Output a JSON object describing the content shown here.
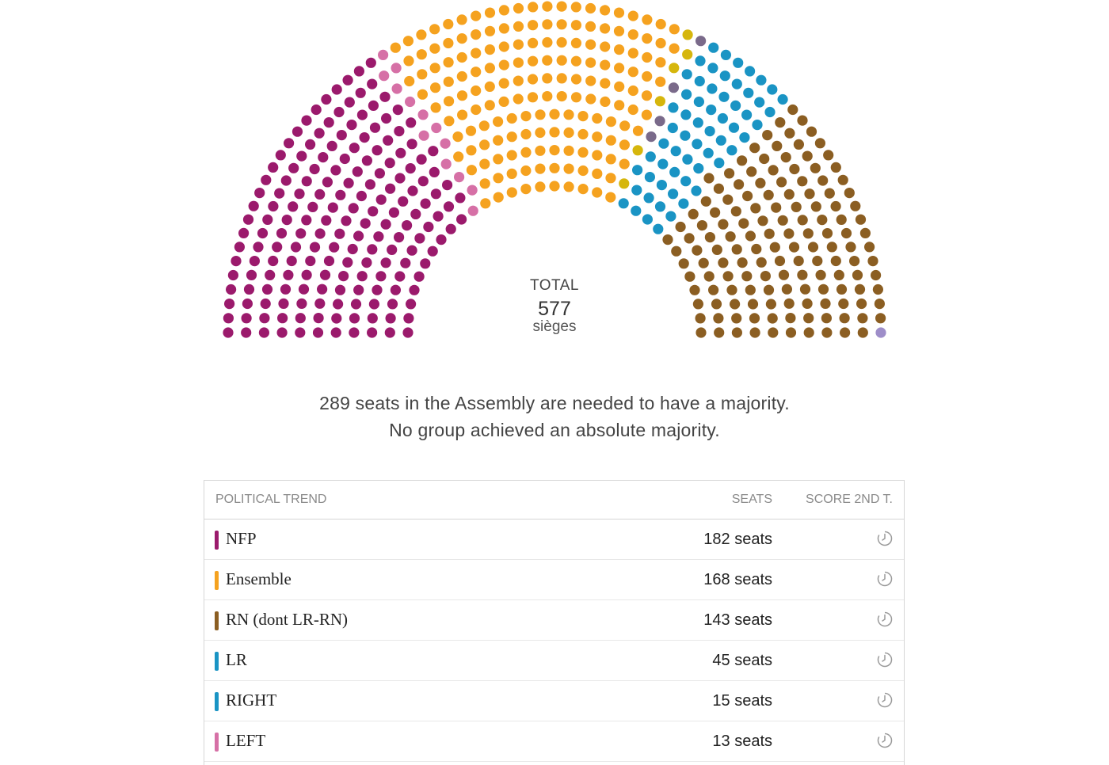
{
  "chart_data": {
    "type": "hemicycle",
    "total_label": "TOTAL",
    "total": "577",
    "total_unit": "sièges",
    "series": [
      {
        "name": "NFP",
        "seats": 182,
        "color": "#9b1a6c"
      },
      {
        "name": "LEFT",
        "seats": 13,
        "color": "#d670a6"
      },
      {
        "name": "Ensemble",
        "seats": 168,
        "color": "#f5a21f"
      },
      {
        "name": "",
        "seats": 6,
        "color": "#d6b60c"
      },
      {
        "name": "",
        "seats": 4,
        "color": "#7a6a8a"
      },
      {
        "name": "RIGHT",
        "seats": 15,
        "color": "#1a94c4"
      },
      {
        "name": "LR",
        "seats": 45,
        "color": "#1a94c4"
      },
      {
        "name": "RN (dont LR-RN)",
        "seats": 143,
        "color": "#8b5e22"
      },
      {
        "name": "",
        "seats": 1,
        "color": "#9e8ec9"
      }
    ]
  },
  "majority": {
    "line1": "289 seats in the Assembly are needed to have a majority.",
    "line2": "No group achieved an absolute majority."
  },
  "table": {
    "headers": {
      "trend": "POLITICAL TREND",
      "seats": "SEATS",
      "score": "SCORE 2ND T."
    },
    "rows": [
      {
        "name": "NFP",
        "seats": "182 seats",
        "color": "#9b1a6c"
      },
      {
        "name": "Ensemble",
        "seats": "168 seats",
        "color": "#f5a21f"
      },
      {
        "name": "RN (dont LR-RN)",
        "seats": "143 seats",
        "color": "#8b5e22"
      },
      {
        "name": "LR",
        "seats": "45 seats",
        "color": "#1a94c4"
      },
      {
        "name": "RIGHT",
        "seats": "15 seats",
        "color": "#1a94c4"
      },
      {
        "name": "LEFT",
        "seats": "13 seats",
        "color": "#d670a6"
      }
    ],
    "score_icon": "clock-icon"
  }
}
